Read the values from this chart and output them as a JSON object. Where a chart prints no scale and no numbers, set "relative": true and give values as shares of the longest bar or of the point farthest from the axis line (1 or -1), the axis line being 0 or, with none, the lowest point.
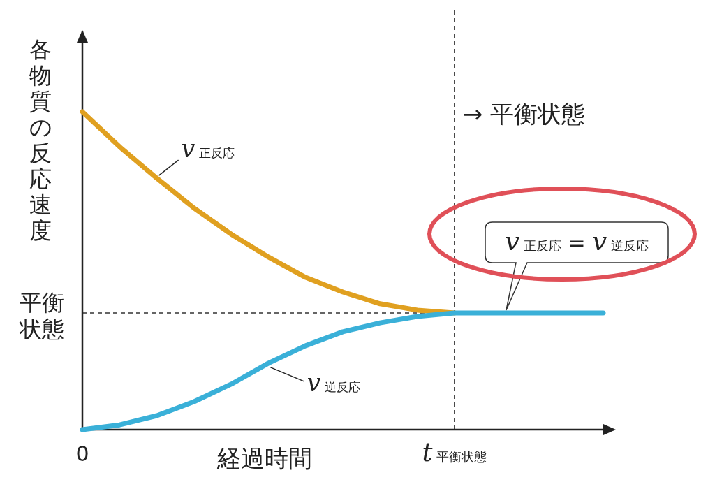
{
  "chart_data": {
    "type": "line",
    "relative": true,
    "xlabel": "経過時間",
    "ylabel": "各物質の反応速度",
    "line_style": "solid",
    "marker": "none",
    "categories": [
      "0",
      null,
      null,
      null,
      null,
      null,
      null,
      null,
      null,
      null,
      "*t*$_{平衡状態}$",
      null,
      null,
      null,
      null
    ],
    "series": [
      {
        "name": "*v*$_{正反応}$",
        "color": "#e0a020",
        "values": [
          1,
          0.89,
          0.791,
          0.697,
          0.615,
          0.543,
          0.479,
          0.433,
          0.396,
          0.376,
          0.367,
          null,
          null,
          null,
          null
        ]
      },
      {
        "name": "*v*$_{逆反応}$",
        "color": "#3ab0d8",
        "values": [
          0,
          0.015,
          0.044,
          0.088,
          0.143,
          0.209,
          0.264,
          0.308,
          0.336,
          0.356,
          0.367,
          0.367,
          0.367,
          0.367,
          0.367
        ]
      }
    ],
    "ref_lines": [
      {
        "axis": "x",
        "value": "*t*$_{平衡状態}$",
        "label": "→ 平衡状態",
        "line_style": "dashed"
      },
      {
        "axis": "y",
        "value": 0.367,
        "label": "平衡状態",
        "line_style": "dashed"
      }
    ],
    "annotations": [
      {
        "text": "*v*$_{正反応}$ = *v*$_{逆反応}$",
        "y": 0.367
      }
    ]
  }
}
